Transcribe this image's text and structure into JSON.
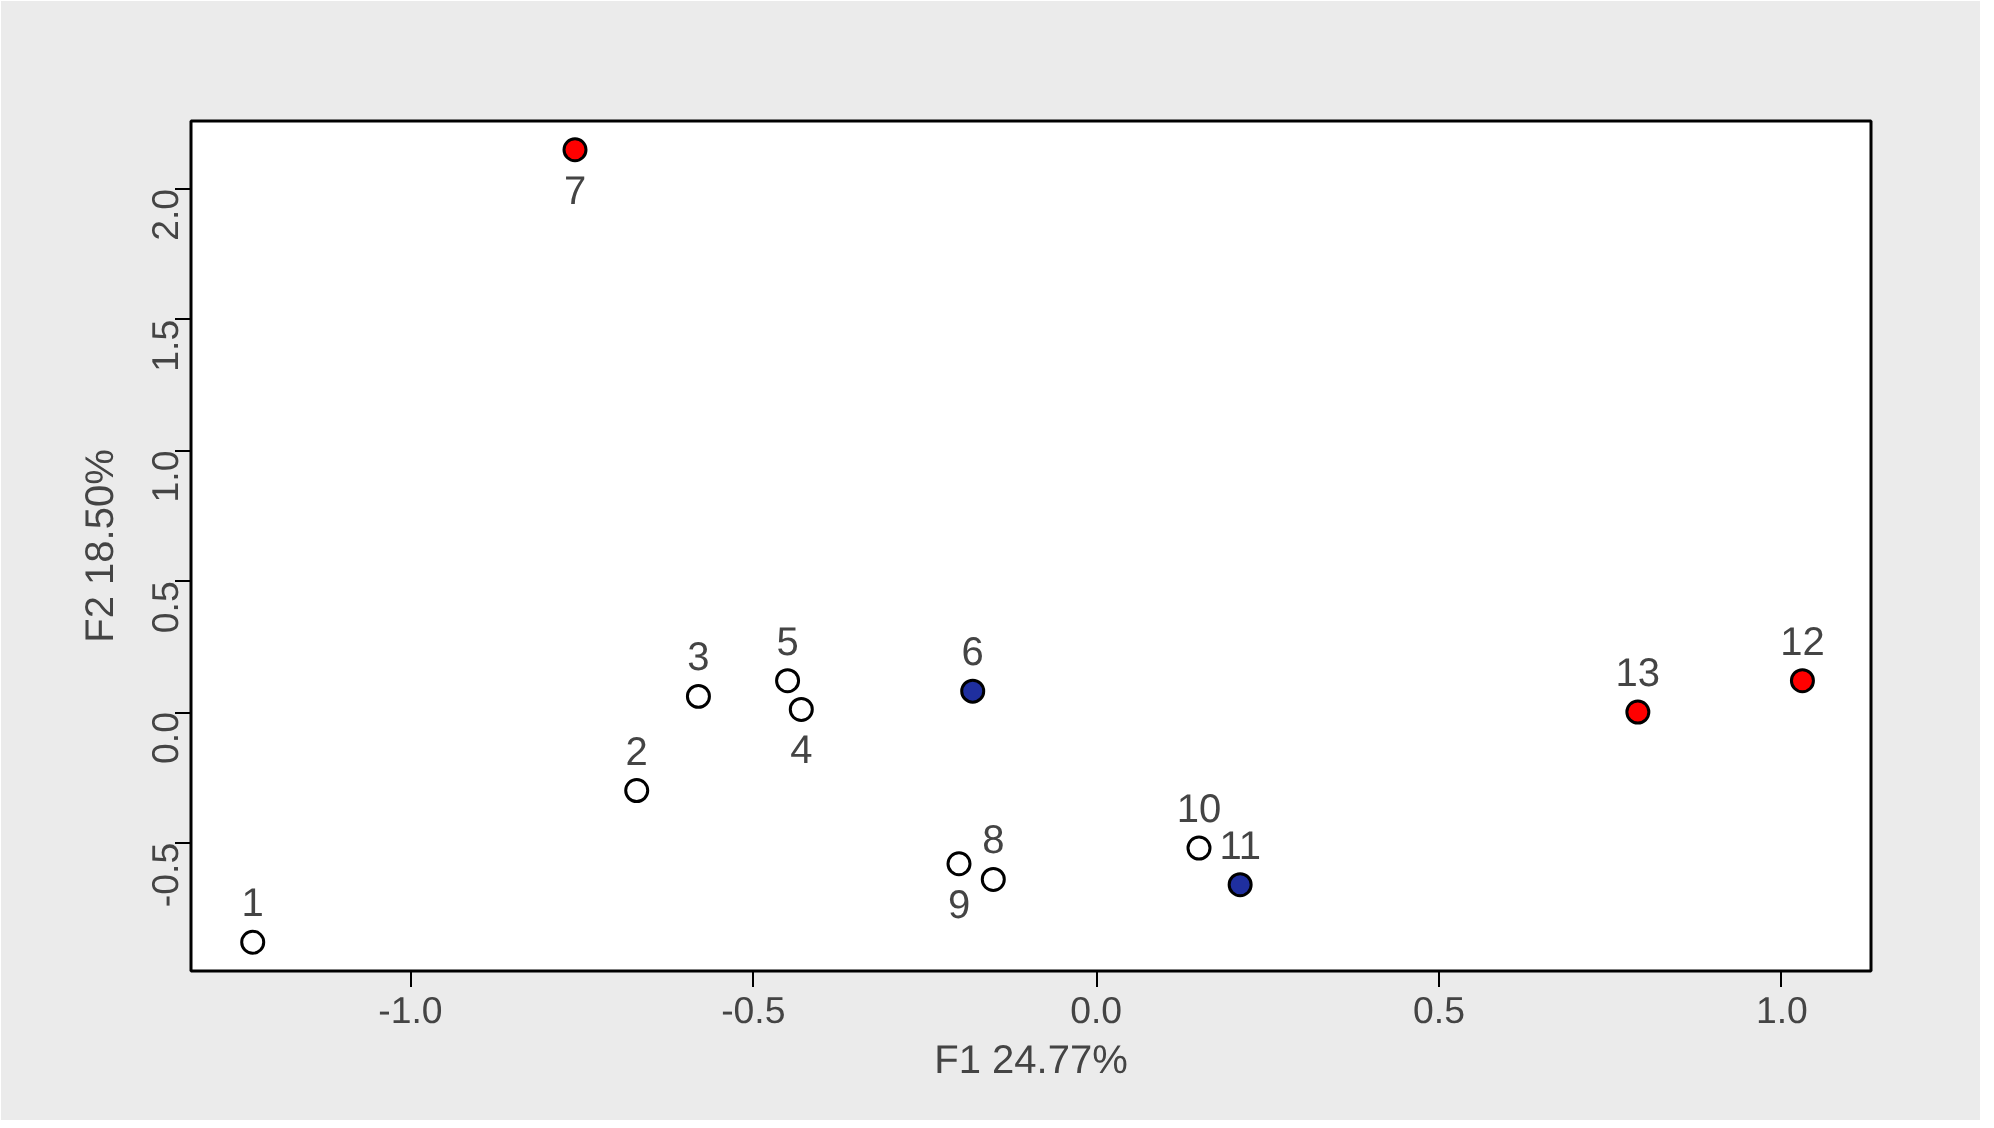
{
  "chart_data": {
    "type": "scatter",
    "xlabel": "F1 24.77%",
    "ylabel": "F2 18.50%",
    "xlim": [
      -1.32,
      1.13
    ],
    "ylim": [
      -0.99,
      2.26
    ],
    "xticks": [
      {
        "value": -1,
        "label": "-1.0"
      },
      {
        "value": -0.5,
        "label": "-0.5"
      },
      {
        "value": 0,
        "label": "0.0"
      },
      {
        "value": 0.5,
        "label": "0.5"
      },
      {
        "value": 1,
        "label": "1.0"
      }
    ],
    "yticks": [
      {
        "value": -0.5,
        "label": "-0.5"
      },
      {
        "value": 0,
        "label": "0.0"
      },
      {
        "value": 0.5,
        "label": "0.5"
      },
      {
        "value": 1,
        "label": "1.0"
      },
      {
        "value": 1.5,
        "label": "1.5"
      },
      {
        "value": 2,
        "label": "2.0"
      }
    ],
    "grid": false,
    "marker": "circle",
    "series": [
      {
        "color": "#ffffff",
        "x": [
          -1.23,
          -0.67,
          -0.58,
          -0.43,
          -0.45,
          -0.15,
          -0.2,
          0.15
        ],
        "values": [
          -0.88,
          -0.3,
          0.06,
          0.01,
          0.12,
          -0.64,
          -0.58,
          -0.52
        ]
      },
      {
        "color": "#1f2f9f",
        "x": [
          -0.18,
          0.21
        ],
        "values": [
          0.08,
          -0.66
        ]
      },
      {
        "color": "#ff0000",
        "x": [
          -0.76,
          1.03,
          0.79
        ],
        "values": [
          2.15,
          0.12,
          0.0
        ]
      }
    ],
    "annotations": [
      {
        "text": "1",
        "x": -1.23,
        "y": -0.88
      },
      {
        "text": "2",
        "x": -0.67,
        "y": -0.3
      },
      {
        "text": "3",
        "x": -0.58,
        "y": 0.06
      },
      {
        "text": "4",
        "x": -0.43,
        "y": 0.01
      },
      {
        "text": "5",
        "x": -0.45,
        "y": 0.12
      },
      {
        "text": "6",
        "x": -0.18,
        "y": 0.08
      },
      {
        "text": "7",
        "x": -0.76,
        "y": 2.15
      },
      {
        "text": "8",
        "x": -0.15,
        "y": -0.64
      },
      {
        "text": "9",
        "x": -0.2,
        "y": -0.58
      },
      {
        "text": "10",
        "x": 0.15,
        "y": -0.52
      },
      {
        "text": "11",
        "x": 0.21,
        "y": -0.66
      },
      {
        "text": "12",
        "x": 1.03,
        "y": 0.12
      },
      {
        "text": "13",
        "x": 0.79,
        "y": 0.0
      }
    ]
  }
}
